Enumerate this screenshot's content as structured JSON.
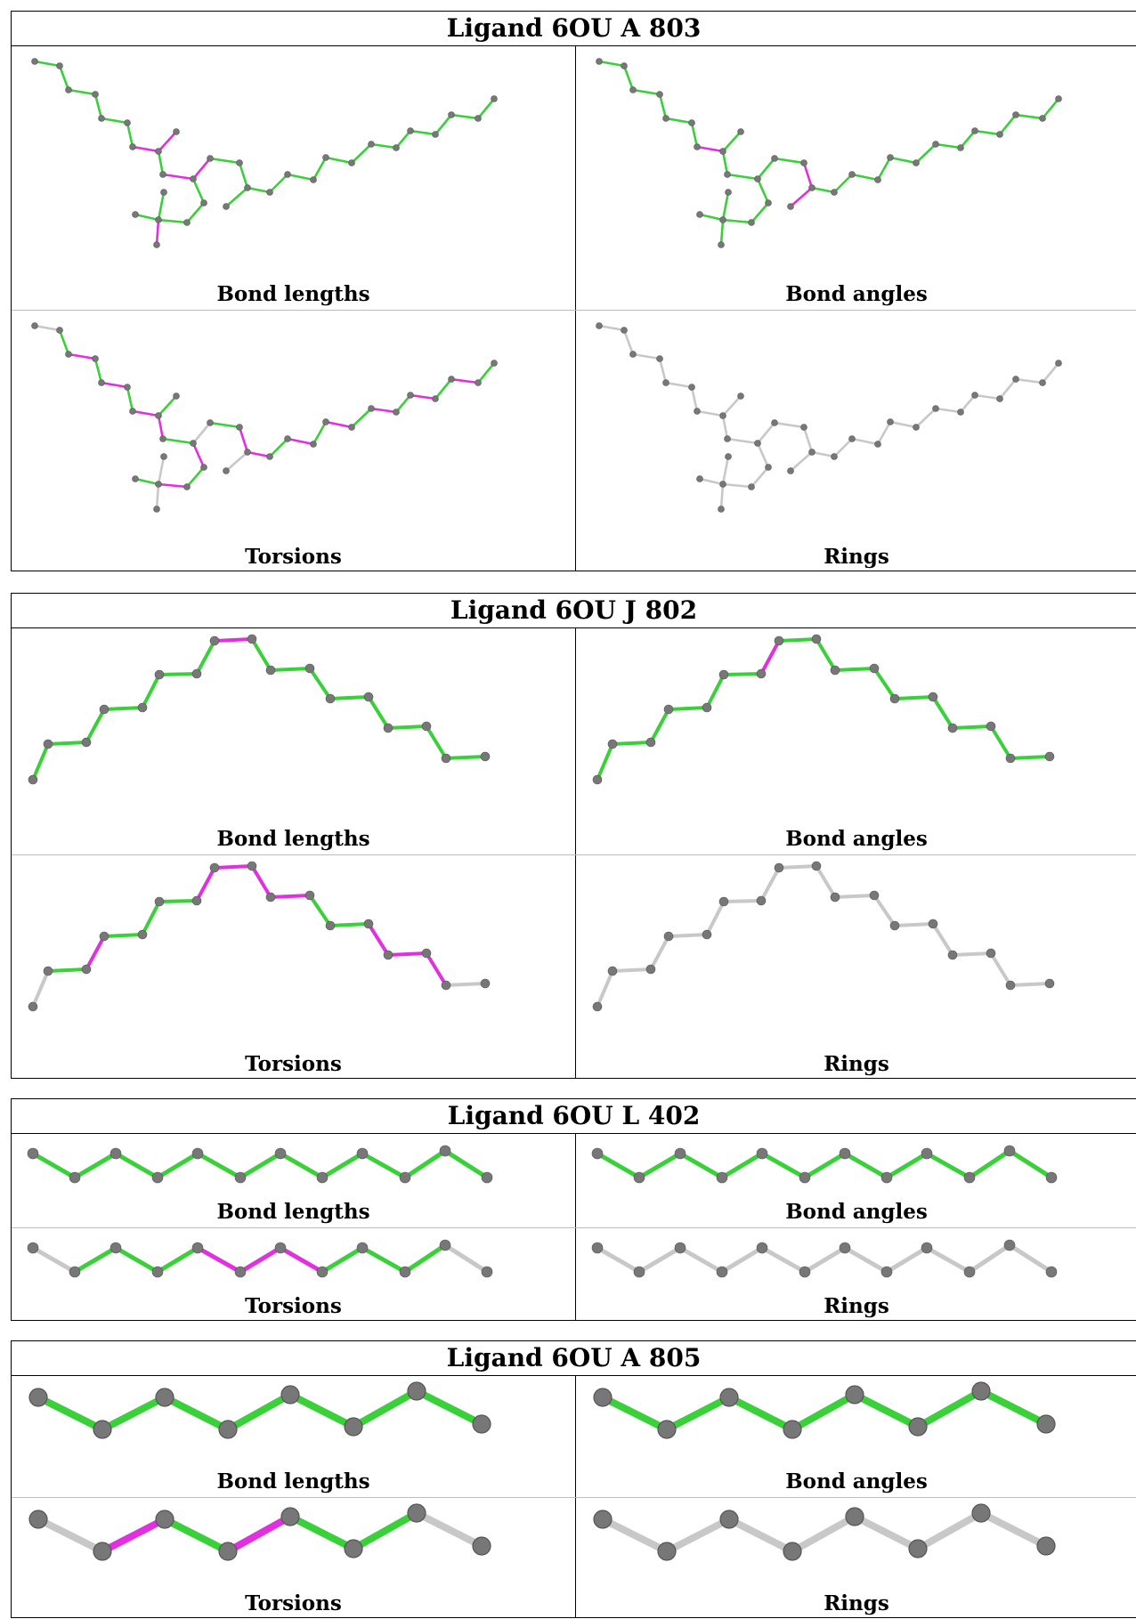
{
  "colors": {
    "good": "#3ad03a",
    "outlier": "#e030e0",
    "na": "#c8c8c8",
    "atom": "#777777"
  },
  "ligands": [
    {
      "title": "Ligand 6OU A 803",
      "panels": [
        {
          "label": "Bond lengths",
          "scheme": "length"
        },
        {
          "label": "Bond angles",
          "scheme": "angle"
        },
        {
          "label": "Torsions",
          "scheme": "torsion"
        },
        {
          "label": "Rings",
          "scheme": "ring"
        }
      ]
    },
    {
      "title": "Ligand 6OU J 802",
      "panels": [
        {
          "label": "Bond lengths",
          "scheme": "length"
        },
        {
          "label": "Bond angles",
          "scheme": "angle"
        },
        {
          "label": "Torsions",
          "scheme": "torsion"
        },
        {
          "label": "Rings",
          "scheme": "ring"
        }
      ]
    },
    {
      "title": "Ligand 6OU L 402",
      "panels": [
        {
          "label": "Bond lengths",
          "scheme": "length"
        },
        {
          "label": "Bond angles",
          "scheme": "angle"
        },
        {
          "label": "Torsions",
          "scheme": "torsion"
        },
        {
          "label": "Rings",
          "scheme": "ring"
        }
      ]
    },
    {
      "title": "Ligand 6OU A 805",
      "panels": [
        {
          "label": "Bond lengths",
          "scheme": "length"
        },
        {
          "label": "Bond angles",
          "scheme": "angle"
        },
        {
          "label": "Torsions",
          "scheme": "torsion"
        },
        {
          "label": "Rings",
          "scheme": "ring"
        }
      ]
    }
  ]
}
